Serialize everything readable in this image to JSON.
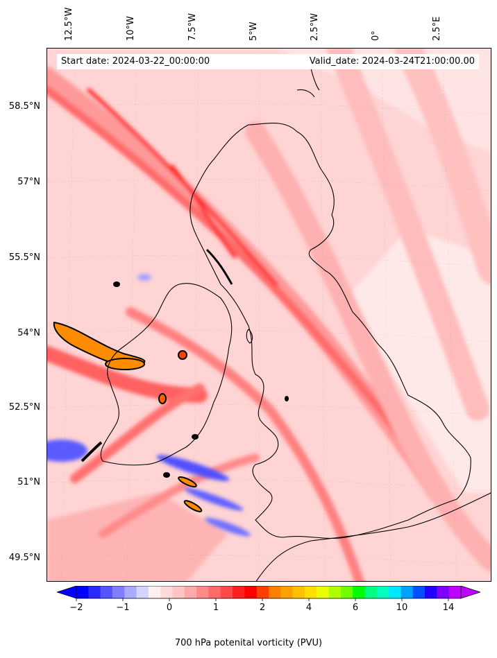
{
  "header": {
    "start_date": "Start date: 2024-03-22_00:00:00",
    "valid_date": "Valid_date: 2024-03-24T21:00:00.00"
  },
  "longitude_labels": [
    "12.5°W",
    "10°W",
    "7.5°W",
    "5°W",
    "2.5°W",
    "0°",
    "2.5°E"
  ],
  "latitude_labels": [
    "58.5°N",
    "57°N",
    "55.5°N",
    "54°N",
    "52.5°N",
    "51°N",
    "49.5°N"
  ],
  "colorbar": {
    "label": "700 hPa potenital vorticity (PVU)",
    "tick_labels": [
      "−2",
      "−1",
      "0",
      "1",
      "2",
      "4",
      "6",
      "10",
      "14"
    ],
    "colors": [
      "#0000ff",
      "#2a2aff",
      "#5555ff",
      "#7f7fff",
      "#aaaaff",
      "#d4d4ff",
      "#fff0f0",
      "#ffdada",
      "#ffc4c4",
      "#ffaaaa",
      "#ff8a8a",
      "#ff6a6a",
      "#ff4a4a",
      "#ff2020",
      "#ff0000",
      "#ff4000",
      "#ff8000",
      "#ffa000",
      "#ffc000",
      "#ffe000",
      "#e8ff00",
      "#b0ff00",
      "#70ff00",
      "#00ff00",
      "#00ff80",
      "#00ffc0",
      "#00e8ff",
      "#00a0ff",
      "#0050ff",
      "#2000ff",
      "#8000ff",
      "#c000ff"
    ],
    "extend_low_color": "#0000ff",
    "extend_high_color": "#c000ff"
  }
}
